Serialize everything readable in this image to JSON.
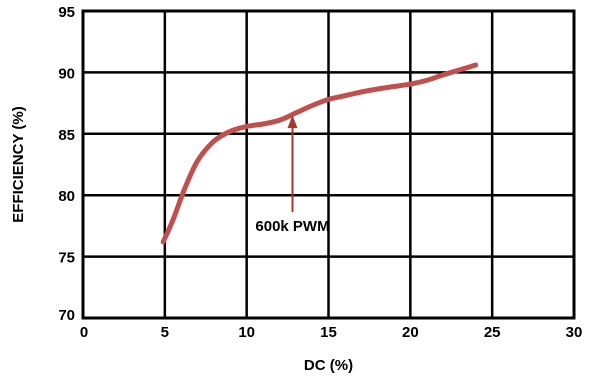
{
  "chart_data": {
    "type": "line",
    "title": "",
    "xlabel": "DC (%)",
    "ylabel": "EFFICIENCY (%)",
    "xlim": [
      0,
      30
    ],
    "ylim": [
      70,
      95
    ],
    "xticks": [
      0,
      5,
      10,
      15,
      20,
      25,
      30
    ],
    "yticks": [
      70,
      75,
      80,
      85,
      90,
      95
    ],
    "grid": true,
    "line_color": "#c0504d",
    "series": [
      {
        "x": [
          4.9,
          5.5,
          6.2,
          7.0,
          8.0,
          9.0,
          10.0,
          11.0,
          12.0,
          13.0,
          14.0,
          15.0,
          16.0,
          17.0,
          18.0,
          19.0,
          20.0,
          21.0,
          22.0,
          23.0,
          24.0
        ],
        "y": [
          76.2,
          78.0,
          80.5,
          82.8,
          84.4,
          85.2,
          85.6,
          85.8,
          86.1,
          86.7,
          87.3,
          87.8,
          88.1,
          88.4,
          88.65,
          88.85,
          89.05,
          89.35,
          89.8,
          90.2,
          90.6
        ]
      }
    ],
    "annotations": [
      {
        "text": "600k PWM",
        "x": 12.8,
        "y": 86.6
      }
    ]
  }
}
